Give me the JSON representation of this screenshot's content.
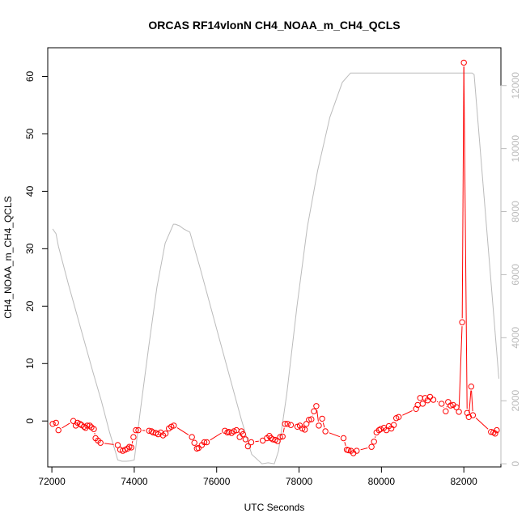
{
  "chart_data": {
    "type": "line",
    "title": "ORCAS RF14vlonN CH4_NOAA_m_CH4_QCLS",
    "xlabel": "UTC Seconds",
    "ylabel": "CH4_NOAA_m_CH4_QCLS",
    "xlim": [
      71900,
      82900
    ],
    "ylim": [
      -8,
      65
    ],
    "y2lim": [
      -100,
      13200
    ],
    "x_ticks": [
      72000,
      74000,
      76000,
      78000,
      80000,
      82000
    ],
    "y_ticks": [
      0,
      10,
      20,
      30,
      40,
      50,
      60
    ],
    "y2_ticks": [
      0,
      2000,
      4000,
      6000,
      8000,
      10000,
      12000
    ],
    "grid": false,
    "series": [
      {
        "color": "#ff0000",
        "axis": "left",
        "style": "line+circles",
        "x": [
          72020,
          72100,
          72160,
          72520,
          72580,
          72620,
          72680,
          72720,
          72780,
          72820,
          72860,
          72920,
          72960,
          73020,
          73060,
          73120,
          73180,
          73600,
          73660,
          73720,
          73780,
          73840,
          73880,
          73930,
          73980,
          74040,
          74100,
          74360,
          74420,
          74460,
          74520,
          74580,
          74640,
          74700,
          74760,
          74840,
          74900,
          74960,
          75400,
          75460,
          75520,
          75560,
          75640,
          75700,
          75760,
          76200,
          76260,
          76300,
          76360,
          76420,
          76480,
          76560,
          76600,
          76640,
          76700,
          76760,
          76840,
          77120,
          77220,
          77280,
          77320,
          77360,
          77420,
          77480,
          77540,
          77600,
          77660,
          77720,
          77800,
          77960,
          78020,
          78080,
          78140,
          78180,
          78240,
          78300,
          78360,
          78420,
          78480,
          78560,
          78640,
          79080,
          79160,
          79200,
          79260,
          79320,
          79400,
          79760,
          79820,
          79880,
          79940,
          79980,
          80060,
          80120,
          80180,
          80240,
          80300,
          80360,
          80420,
          80840,
          80880,
          80940,
          81000,
          81060,
          81120,
          81180,
          81260,
          81460,
          81560,
          81620,
          81680,
          81740,
          81820,
          81880,
          81960,
          82000,
          82080,
          82120,
          82180,
          82220,
          82660,
          82720,
          82760,
          82800
        ],
        "y": [
          -0.5,
          -0.3,
          -1.6,
          0,
          -0.8,
          -0.3,
          -0.5,
          -0.7,
          -1.0,
          -1.2,
          -0.8,
          -0.8,
          -1.1,
          -1.4,
          -3.0,
          -3.4,
          -3.8,
          -4.2,
          -5.0,
          -5.2,
          -5.0,
          -4.8,
          -4.5,
          -4.6,
          -2.8,
          -1.6,
          -1.6,
          -1.7,
          -1.8,
          -2.0,
          -2.1,
          -2.3,
          -2.0,
          -2.5,
          -2.2,
          -1.3,
          -1.0,
          -0.8,
          -2.8,
          -3.8,
          -4.8,
          -4.7,
          -4.2,
          -3.7,
          -3.7,
          -1.7,
          -2.0,
          -1.9,
          -2.1,
          -1.8,
          -1.6,
          -2.8,
          -1.8,
          -2.3,
          -3.2,
          -4.4,
          -3.7,
          -3.4,
          -3.0,
          -2.6,
          -3.0,
          -3.2,
          -3.3,
          -3.5,
          -2.8,
          -2.7,
          -0.5,
          -0.5,
          -0.7,
          -1.0,
          -0.8,
          -1.3,
          -1.5,
          -0.5,
          0.2,
          0.3,
          1.7,
          2.6,
          -0.8,
          0.4,
          -1.8,
          -3.0,
          -5.0,
          -5.1,
          -5.2,
          -5.6,
          -5.2,
          -4.5,
          -3.6,
          -2.0,
          -1.6,
          -1.4,
          -1.2,
          -1.6,
          -0.9,
          -1.3,
          -0.7,
          0.5,
          0.7,
          2.1,
          2.8,
          4.0,
          3.0,
          4.0,
          3.6,
          4.2,
          3.7,
          3.0,
          1.7,
          3.3,
          2.7,
          2.8,
          2.4,
          1.6,
          17.2,
          62.4,
          1.4,
          0.7,
          6.0,
          1.0,
          -1.9,
          -2.0,
          -2.2,
          -1.6
        ]
      },
      {
        "color": "#bbbbbb",
        "axis": "right",
        "style": "line",
        "x": [
          72020,
          72100,
          72160,
          72400,
          72700,
          73000,
          73200,
          73400,
          73550,
          73600,
          73700,
          73800,
          73900,
          74000,
          74150,
          74350,
          74550,
          74750,
          74950,
          75000,
          75100,
          75200,
          75350,
          75600,
          75850,
          76100,
          76350,
          76600,
          76850,
          77100,
          77250,
          77400,
          77500,
          77700,
          77950,
          78200,
          78450,
          78750,
          79050,
          79250,
          79400,
          80000,
          80600,
          81200,
          81700,
          82000,
          82200,
          82250,
          82850
        ],
        "y": [
          7450,
          7300,
          6900,
          5700,
          4300,
          2900,
          2000,
          1000,
          350,
          120,
          80,
          80,
          90,
          120,
          1700,
          3700,
          5600,
          7000,
          7600,
          7600,
          7550,
          7450,
          7350,
          6200,
          5000,
          3800,
          2600,
          1400,
          300,
          0,
          30,
          0,
          400,
          2200,
          5000,
          7500,
          9300,
          11000,
          12100,
          12400,
          12400,
          12400,
          12400,
          12400,
          12400,
          12400,
          12400,
          12350,
          2700
        ]
      }
    ]
  }
}
